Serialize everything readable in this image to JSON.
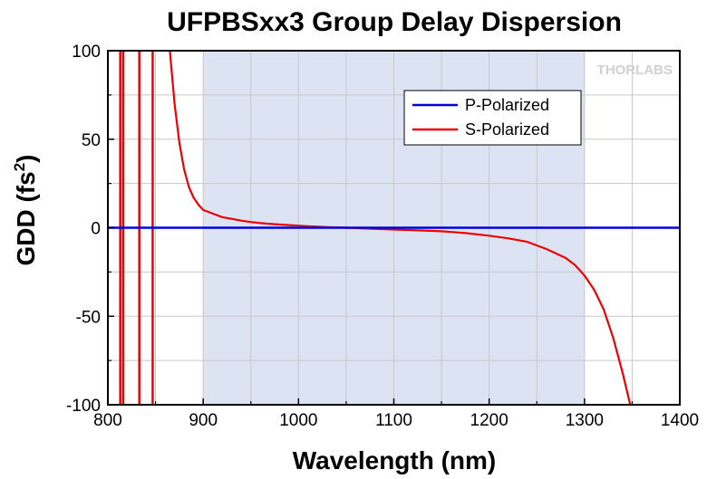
{
  "chart_data": {
    "type": "line",
    "title": "UFPBSxx3 Group Delay Dispersion",
    "xlabel": "Wavelength (nm)",
    "ylabel_main": "GDD (fs",
    "ylabel_sup": "2",
    "ylabel_close": ")",
    "xlim": [
      800,
      1400
    ],
    "ylim": [
      -100,
      100
    ],
    "xticks": [
      800,
      900,
      1000,
      1100,
      1200,
      1300,
      1400
    ],
    "yticks": [
      -100,
      -50,
      0,
      50,
      100
    ],
    "grid": true,
    "legend_position": "top-right",
    "shaded_range": [
      900,
      1300
    ],
    "shade_color": "#dce4f4",
    "watermark": "THORLABS",
    "series": [
      {
        "name": "P-Polarized",
        "color": "#0000dd",
        "x": [
          800,
          1400
        ],
        "y": [
          0,
          0
        ]
      },
      {
        "name": "S-Polarized",
        "color": "#ee0000",
        "x": [
          865,
          870,
          875,
          880,
          885,
          890,
          895,
          900,
          910,
          920,
          930,
          940,
          950,
          960,
          975,
          990,
          1000,
          1010,
          1030,
          1050,
          1075,
          1100,
          1125,
          1150,
          1175,
          1200,
          1220,
          1240,
          1260,
          1280,
          1290,
          1300,
          1310,
          1320,
          1330,
          1340,
          1348
        ],
        "y": [
          100,
          70,
          48,
          33,
          23,
          17,
          13,
          10,
          8,
          6,
          5,
          4,
          3.2,
          2.6,
          2,
          1.5,
          1.2,
          0.8,
          0.3,
          0,
          -0.5,
          -1,
          -1.5,
          -2,
          -3,
          -4.5,
          -6,
          -8,
          -12,
          -17,
          -21,
          -27,
          -35,
          -46,
          -62,
          -82,
          -100
        ],
        "spikes": [
          {
            "x": 813,
            "y1": -100,
            "y2": 100
          },
          {
            "x": 816,
            "y1": -100,
            "y2": 100
          },
          {
            "x": 833,
            "y1": -100,
            "y2": 100
          },
          {
            "x": 847,
            "y1": -100,
            "y2": 100
          }
        ]
      }
    ]
  }
}
